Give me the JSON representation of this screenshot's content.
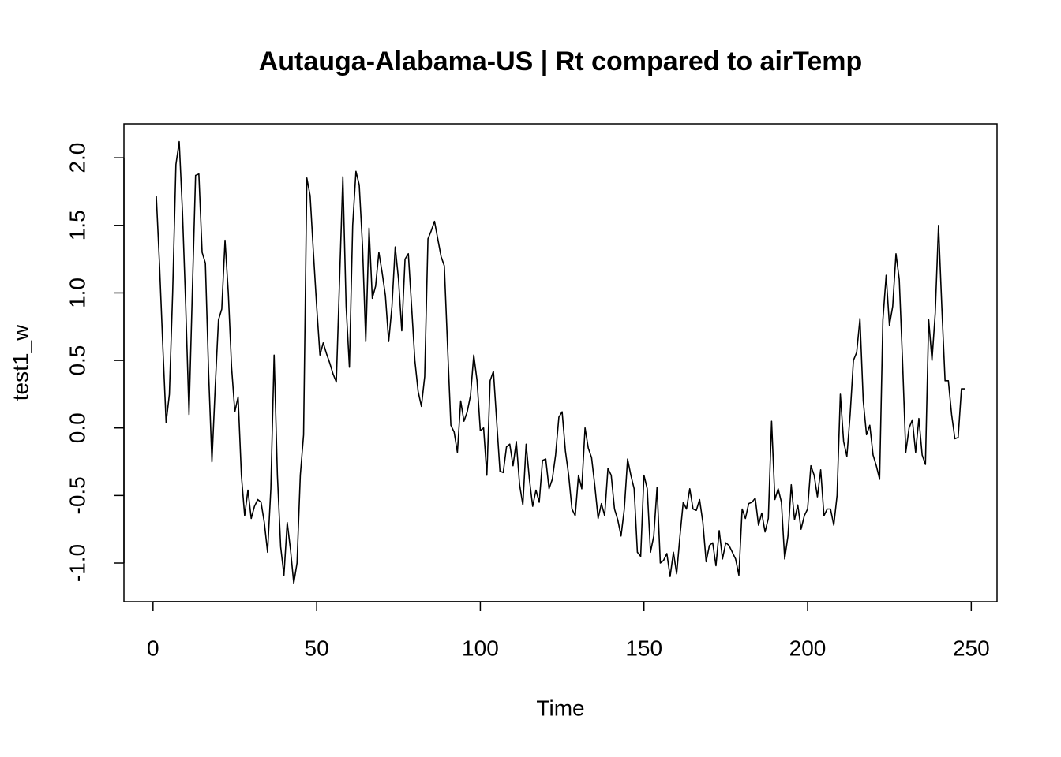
{
  "chart_data": {
    "type": "line",
    "title": "Autauga-Alabama-US | Rt compared to airTemp",
    "x_label": "Time",
    "y_label": "test1_w",
    "color": "#000000",
    "x": [
      1,
      2,
      3,
      4,
      5,
      6,
      7,
      8,
      9,
      10,
      11,
      12,
      13,
      14,
      15,
      16,
      17,
      18,
      19,
      20,
      21,
      22,
      23,
      24,
      25,
      26,
      27,
      28,
      29,
      30,
      31,
      32,
      33,
      34,
      35,
      36,
      37,
      38,
      39,
      40,
      41,
      42,
      43,
      44,
      45,
      46,
      47,
      48,
      49,
      50,
      51,
      52,
      53,
      54,
      55,
      56,
      57,
      58,
      59,
      60,
      61,
      62,
      63,
      64,
      65,
      66,
      67,
      68,
      69,
      70,
      71,
      72,
      73,
      74,
      75,
      76,
      77,
      78,
      79,
      80,
      81,
      82,
      83,
      84,
      85,
      86,
      87,
      88,
      89,
      90,
      91,
      92,
      93,
      94,
      95,
      96,
      97,
      98,
      99,
      100,
      101,
      102,
      103,
      104,
      105,
      106,
      107,
      108,
      109,
      110,
      111,
      112,
      113,
      114,
      115,
      116,
      117,
      118,
      119,
      120,
      121,
      122,
      123,
      124,
      125,
      126,
      127,
      128,
      129,
      130,
      131,
      132,
      133,
      134,
      135,
      136,
      137,
      138,
      139,
      140,
      141,
      142,
      143,
      144,
      145,
      146,
      147,
      148,
      149,
      150,
      151,
      152,
      153,
      154,
      155,
      156,
      157,
      158,
      159,
      160,
      161,
      162,
      163,
      164,
      165,
      166,
      167,
      168,
      169,
      170,
      171,
      172,
      173,
      174,
      175,
      176,
      177,
      178,
      179,
      180,
      181,
      182,
      183,
      184,
      185,
      186,
      187,
      188,
      189,
      190,
      191,
      192,
      193,
      194,
      195,
      196,
      197,
      198,
      199,
      200,
      201,
      202,
      203,
      204,
      205,
      206,
      207,
      208,
      209,
      210,
      211,
      212,
      213,
      214,
      215,
      216,
      217,
      218,
      219,
      220,
      221,
      222,
      223,
      224,
      225,
      226,
      227,
      228,
      229,
      230,
      231,
      232,
      233,
      234,
      235,
      236,
      237,
      238,
      239,
      240,
      241,
      242,
      243,
      244,
      245,
      246,
      247,
      248
    ],
    "values": [
      1.72,
      1.2,
      0.6,
      0.04,
      0.25,
      1.0,
      1.95,
      2.12,
      1.6,
      0.9,
      0.1,
      1.0,
      1.87,
      1.88,
      1.3,
      1.22,
      0.4,
      -0.25,
      0.3,
      0.8,
      0.88,
      1.39,
      1.0,
      0.45,
      0.12,
      0.23,
      -0.35,
      -0.65,
      -0.46,
      -0.67,
      -0.58,
      -0.53,
      -0.55,
      -0.7,
      -0.92,
      -0.45,
      0.54,
      -0.35,
      -0.88,
      -1.09,
      -0.7,
      -0.9,
      -1.15,
      -1.0,
      -0.35,
      -0.05,
      1.85,
      1.72,
      1.3,
      0.9,
      0.54,
      0.63,
      0.55,
      0.48,
      0.4,
      0.34,
      1.1,
      1.86,
      0.9,
      0.45,
      1.5,
      1.9,
      1.8,
      1.35,
      0.64,
      1.48,
      0.96,
      1.05,
      1.3,
      1.15,
      0.98,
      0.64,
      0.9,
      1.34,
      1.1,
      0.72,
      1.25,
      1.29,
      0.9,
      0.5,
      0.27,
      0.16,
      0.38,
      1.4,
      1.46,
      1.53,
      1.4,
      1.27,
      1.2,
      0.6,
      0.02,
      -0.03,
      -0.18,
      0.2,
      0.05,
      0.12,
      0.24,
      0.54,
      0.35,
      -0.02,
      0.0,
      -0.35,
      0.35,
      0.42,
      0.05,
      -0.32,
      -0.33,
      -0.14,
      -0.12,
      -0.28,
      -0.1,
      -0.42,
      -0.57,
      -0.12,
      -0.38,
      -0.58,
      -0.46,
      -0.55,
      -0.24,
      -0.23,
      -0.45,
      -0.38,
      -0.2,
      0.08,
      0.12,
      -0.17,
      -0.35,
      -0.6,
      -0.65,
      -0.35,
      -0.45,
      0.0,
      -0.15,
      -0.22,
      -0.43,
      -0.67,
      -0.56,
      -0.65,
      -0.3,
      -0.35,
      -0.6,
      -0.68,
      -0.8,
      -0.6,
      -0.23,
      -0.35,
      -0.45,
      -0.92,
      -0.95,
      -0.35,
      -0.45,
      -0.92,
      -0.8,
      -0.44,
      -1.0,
      -0.98,
      -0.93,
      -1.1,
      -0.92,
      -1.08,
      -0.8,
      -0.55,
      -0.6,
      -0.45,
      -0.6,
      -0.61,
      -0.53,
      -0.7,
      -0.99,
      -0.87,
      -0.85,
      -1.02,
      -0.76,
      -0.97,
      -0.85,
      -0.87,
      -0.92,
      -0.97,
      -1.09,
      -0.6,
      -0.67,
      -0.56,
      -0.55,
      -0.52,
      -0.72,
      -0.63,
      -0.77,
      -0.67,
      0.05,
      -0.53,
      -0.45,
      -0.55,
      -0.97,
      -0.8,
      -0.42,
      -0.68,
      -0.57,
      -0.75,
      -0.65,
      -0.6,
      -0.28,
      -0.35,
      -0.51,
      -0.31,
      -0.65,
      -0.6,
      -0.6,
      -0.72,
      -0.5,
      0.25,
      -0.1,
      -0.21,
      0.1,
      0.5,
      0.56,
      0.81,
      0.2,
      -0.05,
      0.02,
      -0.2,
      -0.28,
      -0.38,
      0.8,
      1.13,
      0.76,
      0.9,
      1.29,
      1.1,
      0.5,
      -0.18,
      0.0,
      0.06,
      -0.18,
      0.07,
      -0.2,
      -0.27,
      0.8,
      0.5,
      0.85,
      1.5,
      0.9,
      0.35,
      0.35,
      0.1,
      -0.08,
      -0.07,
      0.29,
      0.29
    ],
    "xlim": [
      -8.88,
      257.88
    ],
    "ylim": [
      -1.286,
      2.252
    ],
    "xticks": [
      0,
      50,
      100,
      150,
      200,
      250
    ],
    "yticks": [
      {
        "value": -1,
        "label": "-1.0"
      },
      -0.5,
      {
        "value": 0,
        "label": "0.0"
      },
      0.5,
      {
        "value": 1,
        "label": "1.0"
      },
      1.5,
      {
        "value": 2,
        "label": "2.0"
      }
    ]
  }
}
